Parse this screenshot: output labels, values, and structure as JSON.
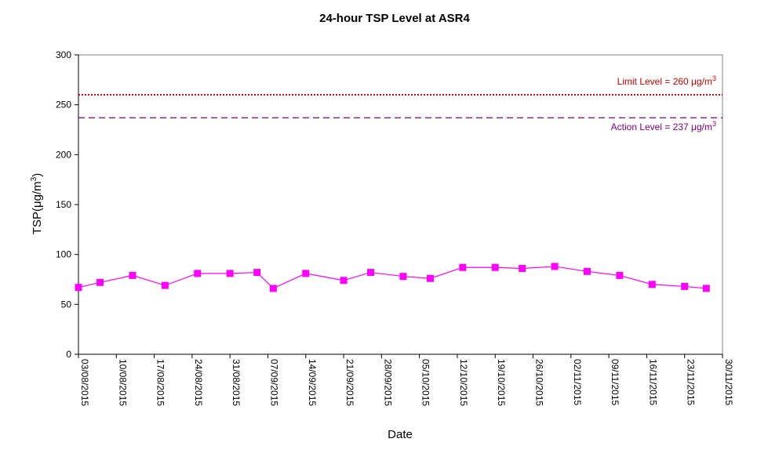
{
  "chart_data": {
    "type": "line",
    "title": "24-hour TSP Level at ASR4",
    "xlabel": "Date",
    "ylabel_main": "TSP(",
    "ylabel_mu": "μ",
    "ylabel_unit": "g/m",
    "ylabel_sup": "3",
    "ylabel_close": ")",
    "ylim": [
      0,
      300
    ],
    "yticks": [
      0,
      50,
      100,
      150,
      200,
      250,
      300
    ],
    "xlim": [
      "2015-08-03",
      "2015-11-30"
    ],
    "xtick_labels": [
      "03/08/2015",
      "10/08/2015",
      "17/08/2015",
      "24/08/2015",
      "31/08/2015",
      "07/09/2015",
      "14/09/2015",
      "21/09/2015",
      "28/09/2015",
      "05/10/2015",
      "12/10/2015",
      "19/10/2015",
      "26/10/2015",
      "02/11/2015",
      "09/11/2015",
      "16/11/2015",
      "23/11/2015",
      "30/11/2015"
    ],
    "grid": false,
    "series": [
      {
        "color": "#ff00ff",
        "x": [
          "2015-08-03",
          "2015-08-07",
          "2015-08-13",
          "2015-08-19",
          "2015-08-25",
          "2015-08-31",
          "2015-09-05",
          "2015-09-08",
          "2015-09-14",
          "2015-09-21",
          "2015-09-26",
          "2015-10-02",
          "2015-10-07",
          "2015-10-13",
          "2015-10-19",
          "2015-10-24",
          "2015-10-30",
          "2015-11-05",
          "2015-11-11",
          "2015-11-17",
          "2015-11-23",
          "2015-11-27"
        ],
        "y": [
          67,
          72,
          79,
          69,
          81,
          81,
          82,
          66,
          81,
          74,
          82,
          78,
          76,
          87,
          87,
          86,
          88,
          83,
          79,
          70,
          68,
          66
        ]
      }
    ],
    "reference_lines": [
      {
        "value": 260,
        "color": "#cc0000",
        "style": "dotted",
        "label_prefix": "Limit Level  = 260 ",
        "label_unit_mu": "μ",
        "label_unit": "g/m",
        "label_sup": "3"
      },
      {
        "value": 237,
        "color": "#800080",
        "style": "dashed",
        "label_prefix": "Action Level  = 237 ",
        "label_unit_mu": "μ",
        "label_unit": "g/m",
        "label_sup": "3"
      }
    ]
  }
}
